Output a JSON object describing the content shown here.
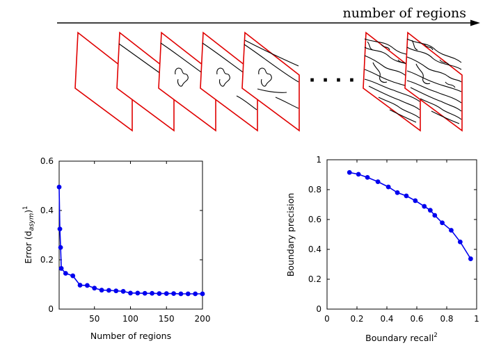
{
  "arrow_label": "number of regions",
  "ellipsis": "· · · ·",
  "chart_data": [
    {
      "type": "line",
      "xlabel": "Number of regions",
      "ylabel": "Error (d",
      "ylabel_sub": "asym",
      "ylabel_close": ")",
      "ylabel_sup": "1",
      "xlim": [
        1,
        200
      ],
      "ylim": [
        0,
        0.6
      ],
      "xticks": [
        50,
        100,
        150,
        200
      ],
      "yticks": [
        0,
        0.2,
        0.4,
        0.6
      ],
      "xtick_labels": [
        "50",
        "100",
        "150",
        "200"
      ],
      "ytick_labels": [
        "0",
        "0.2",
        "0.4",
        "0.6"
      ],
      "color": "#0000ee",
      "grid": false,
      "series": [
        {
          "x": [
            1,
            2,
            3,
            4,
            10,
            20,
            30,
            40,
            50,
            60,
            70,
            80,
            90,
            100,
            110,
            120,
            130,
            140,
            150,
            160,
            170,
            180,
            190,
            200
          ],
          "y": [
            0.495,
            0.325,
            0.25,
            0.165,
            0.145,
            0.135,
            0.097,
            0.096,
            0.085,
            0.077,
            0.076,
            0.074,
            0.072,
            0.065,
            0.065,
            0.064,
            0.064,
            0.063,
            0.063,
            0.063,
            0.062,
            0.062,
            0.062,
            0.062
          ]
        }
      ]
    },
    {
      "type": "line",
      "xlabel": "Boundary recall",
      "xlabel_sup": "2",
      "ylabel": "Boundary precision",
      "xlim": [
        0,
        1
      ],
      "ylim": [
        0,
        1
      ],
      "xticks": [
        0,
        0.2,
        0.4,
        0.6,
        0.8,
        1
      ],
      "yticks": [
        0,
        0.2,
        0.4,
        0.6,
        0.8,
        1
      ],
      "xtick_labels": [
        "0",
        "0.2",
        "0.4",
        "0.6",
        "0.8",
        "1"
      ],
      "ytick_labels": [
        "0",
        "0.2",
        "0.4",
        "0.6",
        "0.8",
        "1"
      ],
      "color": "#0000ee",
      "grid": false,
      "series": [
        {
          "x": [
            0.15,
            0.21,
            0.27,
            0.34,
            0.41,
            0.47,
            0.53,
            0.59,
            0.65,
            0.69,
            0.72,
            0.77,
            0.83,
            0.89,
            0.96
          ],
          "y": [
            0.915,
            0.903,
            0.882,
            0.853,
            0.818,
            0.78,
            0.758,
            0.726,
            0.688,
            0.662,
            0.628,
            0.578,
            0.528,
            0.45,
            0.337
          ]
        }
      ]
    }
  ]
}
